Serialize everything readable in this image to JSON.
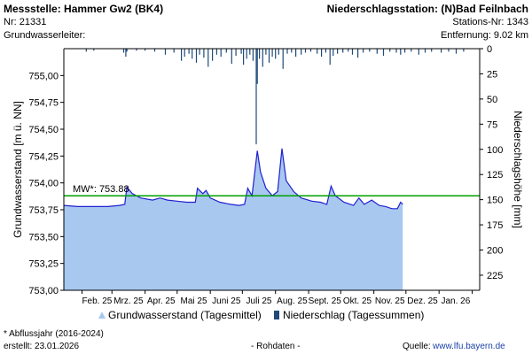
{
  "header": {
    "station_title": "Messstelle: Hammer Gw2 (BK4)",
    "station_nr": "Nr: 21331",
    "aquifer": "Grundwasserleiter:",
    "precip_title": "Niederschlagsstation: (N)Bad Feilnbach",
    "precip_nr": "Stations-Nr: 1343",
    "distance": "Entfernung: 9.02 km"
  },
  "footer": {
    "note": "* Abflussjahr (2016-2024)",
    "created": "erstellt:  23.01.2026",
    "status": "- Rohdaten -",
    "source_label": "Quelle:",
    "source_link": "www.lfu.bayern.de"
  },
  "legend": {
    "gw_label": "Grundwasserstand (Tagesmittel)",
    "precip_label": "Niederschlag (Tagessummen)"
  },
  "colors": {
    "gw_fill": "#a8c8f0",
    "gw_line": "#2020d0",
    "mw_line": "#00a000",
    "precip_bar": "#1f4a7a",
    "axis": "#000000",
    "grid": "#c8c8c8"
  },
  "chart_data": {
    "type": "area",
    "ylabel": "Grundwasserstand [m ü. NN]",
    "y2label": "Niederschlagshöhe [mm]",
    "ylim": [
      753.0,
      755.25
    ],
    "y_ticks": [
      "753,00",
      "753,25",
      "753,50",
      "753,75",
      "754,00",
      "754,25",
      "754,50",
      "754,75",
      "755,00"
    ],
    "y2lim": [
      0,
      240
    ],
    "y2_ticks": [
      "0",
      "25",
      "50",
      "75",
      "100",
      "125",
      "150",
      "175",
      "200",
      "225"
    ],
    "x_tick_labels": [
      "Feb. 25",
      "Mrz. 25",
      "Apr. 25",
      "Mai 25",
      "Juni 25",
      "Juli 25",
      "Aug. 25",
      "Sept. 25",
      "Okt. 25",
      "Nov. 25",
      "Dez. 25",
      "Jan. 26"
    ],
    "x_start": "2025-01-15",
    "x_end": "2026-02-08",
    "mw": {
      "label": "MW*: 753.88",
      "value": 753.88
    },
    "groundwater": [
      {
        "date": "2025-01-15",
        "level": 753.79
      },
      {
        "date": "2025-01-28",
        "level": 753.78
      },
      {
        "date": "2025-02-10",
        "level": 753.78
      },
      {
        "date": "2025-02-25",
        "level": 753.78
      },
      {
        "date": "2025-03-08",
        "level": 753.79
      },
      {
        "date": "2025-03-13",
        "level": 753.8
      },
      {
        "date": "2025-03-15",
        "level": 753.96
      },
      {
        "date": "2025-03-20",
        "level": 753.9
      },
      {
        "date": "2025-03-28",
        "level": 753.86
      },
      {
        "date": "2025-04-08",
        "level": 753.84
      },
      {
        "date": "2025-04-15",
        "level": 753.86
      },
      {
        "date": "2025-04-22",
        "level": 753.84
      },
      {
        "date": "2025-05-01",
        "level": 753.83
      },
      {
        "date": "2025-05-10",
        "level": 753.82
      },
      {
        "date": "2025-05-18",
        "level": 753.82
      },
      {
        "date": "2025-05-20",
        "level": 753.95
      },
      {
        "date": "2025-05-25",
        "level": 753.9
      },
      {
        "date": "2025-05-28",
        "level": 753.93
      },
      {
        "date": "2025-06-01",
        "level": 753.86
      },
      {
        "date": "2025-06-10",
        "level": 753.82
      },
      {
        "date": "2025-06-20",
        "level": 753.8
      },
      {
        "date": "2025-06-28",
        "level": 753.79
      },
      {
        "date": "2025-07-03",
        "level": 753.8
      },
      {
        "date": "2025-07-06",
        "level": 753.95
      },
      {
        "date": "2025-07-10",
        "level": 753.88
      },
      {
        "date": "2025-07-15",
        "level": 754.3
      },
      {
        "date": "2025-07-18",
        "level": 754.1
      },
      {
        "date": "2025-07-23",
        "level": 753.95
      },
      {
        "date": "2025-07-29",
        "level": 753.88
      },
      {
        "date": "2025-08-03",
        "level": 753.92
      },
      {
        "date": "2025-08-07",
        "level": 754.32
      },
      {
        "date": "2025-08-11",
        "level": 754.02
      },
      {
        "date": "2025-08-18",
        "level": 753.92
      },
      {
        "date": "2025-08-25",
        "level": 753.86
      },
      {
        "date": "2025-09-04",
        "level": 753.83
      },
      {
        "date": "2025-09-12",
        "level": 753.82
      },
      {
        "date": "2025-09-18",
        "level": 753.8
      },
      {
        "date": "2025-09-22",
        "level": 753.97
      },
      {
        "date": "2025-09-26",
        "level": 753.88
      },
      {
        "date": "2025-10-04",
        "level": 753.82
      },
      {
        "date": "2025-10-13",
        "level": 753.79
      },
      {
        "date": "2025-10-18",
        "level": 753.86
      },
      {
        "date": "2025-10-23",
        "level": 753.8
      },
      {
        "date": "2025-10-30",
        "level": 753.84
      },
      {
        "date": "2025-11-06",
        "level": 753.79
      },
      {
        "date": "2025-11-12",
        "level": 753.78
      },
      {
        "date": "2025-11-18",
        "level": 753.76
      },
      {
        "date": "2025-11-23",
        "level": 753.76
      },
      {
        "date": "2025-11-26",
        "level": 753.82
      },
      {
        "date": "2025-11-28",
        "level": 753.8
      }
    ],
    "precipitation": [
      {
        "date": "2025-02-05",
        "mm": 3
      },
      {
        "date": "2025-02-12",
        "mm": 2
      },
      {
        "date": "2025-03-12",
        "mm": 4
      },
      {
        "date": "2025-03-14",
        "mm": 8
      },
      {
        "date": "2025-03-15",
        "mm": 3
      },
      {
        "date": "2025-03-24",
        "mm": 2
      },
      {
        "date": "2025-04-01",
        "mm": 2
      },
      {
        "date": "2025-04-10",
        "mm": 3
      },
      {
        "date": "2025-04-20",
        "mm": 6
      },
      {
        "date": "2025-04-28",
        "mm": 4
      },
      {
        "date": "2025-05-05",
        "mm": 12
      },
      {
        "date": "2025-05-08",
        "mm": 8
      },
      {
        "date": "2025-05-12",
        "mm": 5
      },
      {
        "date": "2025-05-15",
        "mm": 10
      },
      {
        "date": "2025-05-19",
        "mm": 14
      },
      {
        "date": "2025-05-22",
        "mm": 6
      },
      {
        "date": "2025-05-26",
        "mm": 9
      },
      {
        "date": "2025-05-30",
        "mm": 18
      },
      {
        "date": "2025-06-03",
        "mm": 12
      },
      {
        "date": "2025-06-07",
        "mm": 6
      },
      {
        "date": "2025-06-11",
        "mm": 8
      },
      {
        "date": "2025-06-16",
        "mm": 4
      },
      {
        "date": "2025-06-21",
        "mm": 15
      },
      {
        "date": "2025-06-25",
        "mm": 7
      },
      {
        "date": "2025-06-30",
        "mm": 5
      },
      {
        "date": "2025-07-02",
        "mm": 16
      },
      {
        "date": "2025-07-05",
        "mm": 10
      },
      {
        "date": "2025-07-08",
        "mm": 6
      },
      {
        "date": "2025-07-11",
        "mm": 12
      },
      {
        "date": "2025-07-14",
        "mm": 95
      },
      {
        "date": "2025-07-15",
        "mm": 35
      },
      {
        "date": "2025-07-17",
        "mm": 10
      },
      {
        "date": "2025-07-20",
        "mm": 18
      },
      {
        "date": "2025-07-23",
        "mm": 6
      },
      {
        "date": "2025-07-26",
        "mm": 14
      },
      {
        "date": "2025-07-29",
        "mm": 8
      },
      {
        "date": "2025-08-01",
        "mm": 10
      },
      {
        "date": "2025-08-04",
        "mm": 6
      },
      {
        "date": "2025-08-08",
        "mm": 20
      },
      {
        "date": "2025-08-12",
        "mm": 5
      },
      {
        "date": "2025-08-16",
        "mm": 4
      },
      {
        "date": "2025-08-20",
        "mm": 8
      },
      {
        "date": "2025-08-25",
        "mm": 6
      },
      {
        "date": "2025-08-29",
        "mm": 4
      },
      {
        "date": "2025-09-03",
        "mm": 3
      },
      {
        "date": "2025-09-09",
        "mm": 5
      },
      {
        "date": "2025-09-13",
        "mm": 8
      },
      {
        "date": "2025-09-17",
        "mm": 4
      },
      {
        "date": "2025-09-21",
        "mm": 16
      },
      {
        "date": "2025-09-24",
        "mm": 7
      },
      {
        "date": "2025-09-28",
        "mm": 5
      },
      {
        "date": "2025-10-03",
        "mm": 4
      },
      {
        "date": "2025-10-08",
        "mm": 3
      },
      {
        "date": "2025-10-12",
        "mm": 6
      },
      {
        "date": "2025-10-17",
        "mm": 9
      },
      {
        "date": "2025-10-22",
        "mm": 4
      },
      {
        "date": "2025-10-28",
        "mm": 3
      },
      {
        "date": "2025-11-04",
        "mm": 5
      },
      {
        "date": "2025-11-10",
        "mm": 7
      },
      {
        "date": "2025-11-16",
        "mm": 3
      },
      {
        "date": "2025-11-22",
        "mm": 4
      },
      {
        "date": "2025-11-26",
        "mm": 6
      },
      {
        "date": "2025-11-30",
        "mm": 4
      },
      {
        "date": "2025-12-06",
        "mm": 3
      },
      {
        "date": "2025-12-13",
        "mm": 6
      },
      {
        "date": "2025-12-19",
        "mm": 4
      },
      {
        "date": "2025-12-25",
        "mm": 3
      },
      {
        "date": "2026-01-03",
        "mm": 4
      },
      {
        "date": "2026-01-10",
        "mm": 3
      },
      {
        "date": "2026-01-17",
        "mm": 5
      },
      {
        "date": "2026-01-24",
        "mm": 3
      }
    ]
  }
}
